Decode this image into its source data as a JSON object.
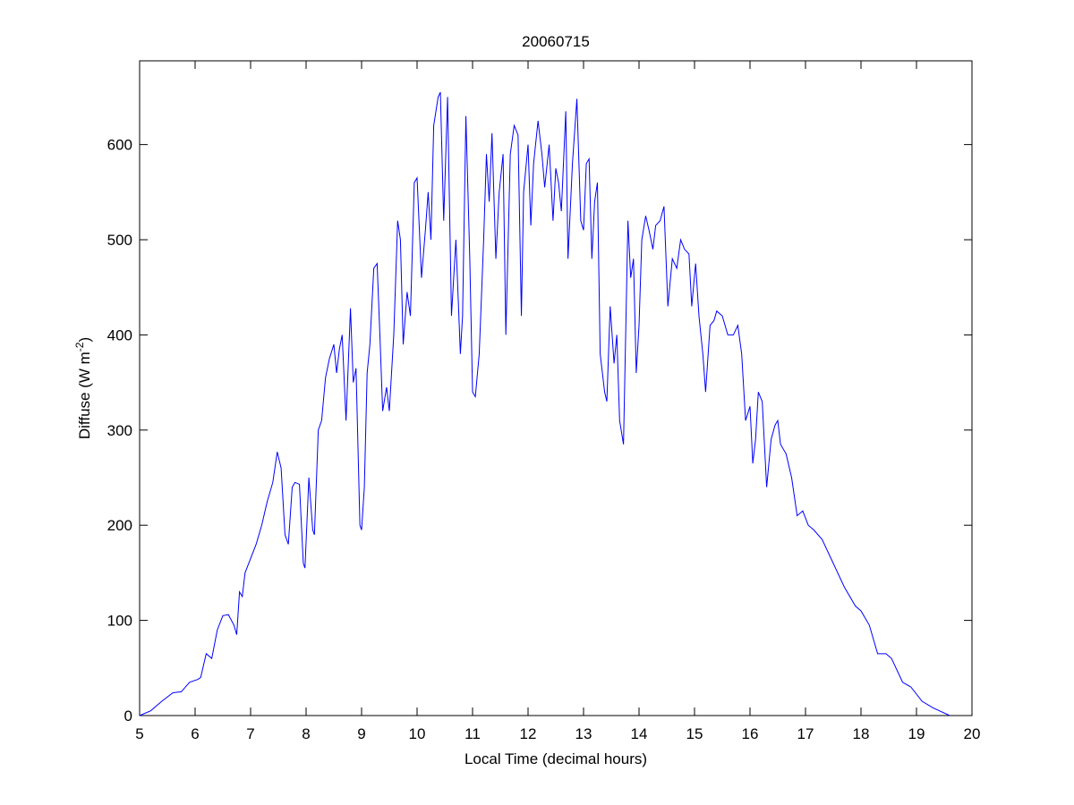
{
  "chart_data": {
    "type": "line",
    "title": "20060715",
    "xlabel": "Local Time (decimal hours)",
    "ylabel_parts": [
      "Diffuse (W m",
      "-2",
      ")"
    ],
    "xlim": [
      5,
      20
    ],
    "ylim": [
      0,
      688
    ],
    "xticks": [
      5,
      6,
      7,
      8,
      9,
      10,
      11,
      12,
      13,
      14,
      15,
      16,
      17,
      18,
      19,
      20
    ],
    "yticks": [
      0,
      100,
      200,
      300,
      400,
      500,
      600
    ],
    "grid": false,
    "x": [
      5.0,
      5.2,
      5.4,
      5.6,
      5.75,
      5.9,
      6.05,
      6.1,
      6.2,
      6.3,
      6.4,
      6.5,
      6.6,
      6.7,
      6.75,
      6.8,
      6.85,
      6.9,
      7.0,
      7.1,
      7.2,
      7.3,
      7.4,
      7.48,
      7.55,
      7.62,
      7.68,
      7.75,
      7.8,
      7.88,
      7.95,
      7.98,
      8.05,
      8.12,
      8.15,
      8.22,
      8.28,
      8.35,
      8.42,
      8.5,
      8.55,
      8.6,
      8.65,
      8.72,
      8.8,
      8.85,
      8.9,
      8.97,
      9.0,
      9.05,
      9.1,
      9.15,
      9.22,
      9.28,
      9.33,
      9.38,
      9.45,
      9.5,
      9.58,
      9.65,
      9.7,
      9.75,
      9.82,
      9.88,
      9.95,
      10.0,
      10.08,
      10.15,
      10.2,
      10.25,
      10.3,
      10.38,
      10.42,
      10.48,
      10.55,
      10.62,
      10.7,
      10.78,
      10.82,
      10.88,
      10.95,
      11.0,
      11.05,
      11.12,
      11.2,
      11.25,
      11.3,
      11.35,
      11.42,
      11.48,
      11.55,
      11.6,
      11.68,
      11.75,
      11.82,
      11.88,
      11.92,
      12.0,
      12.05,
      12.1,
      12.18,
      12.25,
      12.3,
      12.38,
      12.45,
      12.5,
      12.55,
      12.6,
      12.68,
      12.72,
      12.8,
      12.88,
      12.95,
      13.0,
      13.05,
      13.1,
      13.15,
      13.2,
      13.25,
      13.3,
      13.38,
      13.42,
      13.48,
      13.55,
      13.6,
      13.65,
      13.72,
      13.8,
      13.85,
      13.9,
      13.95,
      14.0,
      14.05,
      14.12,
      14.18,
      14.25,
      14.3,
      14.38,
      14.45,
      14.52,
      14.6,
      14.68,
      14.75,
      14.82,
      14.9,
      14.95,
      15.02,
      15.08,
      15.15,
      15.2,
      15.28,
      15.35,
      15.4,
      15.5,
      15.6,
      15.7,
      15.78,
      15.85,
      15.92,
      16.0,
      16.05,
      16.1,
      16.15,
      16.22,
      16.3,
      16.38,
      16.45,
      16.5,
      16.55,
      16.65,
      16.75,
      16.85,
      16.95,
      17.05,
      17.15,
      17.3,
      17.5,
      17.7,
      17.9,
      18.0,
      18.15,
      18.3,
      18.45,
      18.55,
      18.75,
      18.9,
      19.1,
      19.3,
      19.6
    ],
    "series": [
      {
        "color": "#0000ff",
        "values": [
          0,
          5,
          15,
          24,
          25,
          35,
          38,
          40,
          65,
          60,
          90,
          105,
          106,
          95,
          85,
          130,
          125,
          150,
          165,
          180,
          200,
          225,
          245,
          277,
          260,
          190,
          180,
          240,
          245,
          243,
          160,
          155,
          250,
          195,
          190,
          300,
          310,
          355,
          375,
          390,
          360,
          385,
          400,
          310,
          428,
          350,
          365,
          200,
          195,
          240,
          360,
          390,
          470,
          475,
          400,
          320,
          345,
          320,
          400,
          520,
          500,
          390,
          445,
          420,
          560,
          565,
          460,
          510,
          550,
          500,
          620,
          650,
          655,
          520,
          650,
          420,
          500,
          380,
          420,
          630,
          480,
          340,
          335,
          380,
          500,
          590,
          540,
          612,
          480,
          550,
          590,
          400,
          590,
          620,
          610,
          420,
          550,
          600,
          515,
          580,
          625,
          590,
          555,
          600,
          520,
          575,
          560,
          530,
          635,
          480,
          580,
          648,
          520,
          510,
          580,
          585,
          480,
          540,
          560,
          380,
          340,
          330,
          430,
          370,
          400,
          310,
          285,
          520,
          460,
          480,
          360,
          410,
          500,
          525,
          510,
          490,
          515,
          520,
          535,
          430,
          480,
          470,
          500,
          490,
          485,
          430,
          475,
          420,
          380,
          340,
          410,
          415,
          425,
          420,
          400,
          400,
          410,
          380,
          310,
          325,
          265,
          290,
          340,
          330,
          240,
          290,
          305,
          310,
          285,
          275,
          250,
          210,
          215,
          200,
          195,
          185,
          160,
          135,
          115,
          110,
          95,
          65,
          65,
          60,
          35,
          30,
          15,
          8,
          0
        ]
      }
    ]
  }
}
